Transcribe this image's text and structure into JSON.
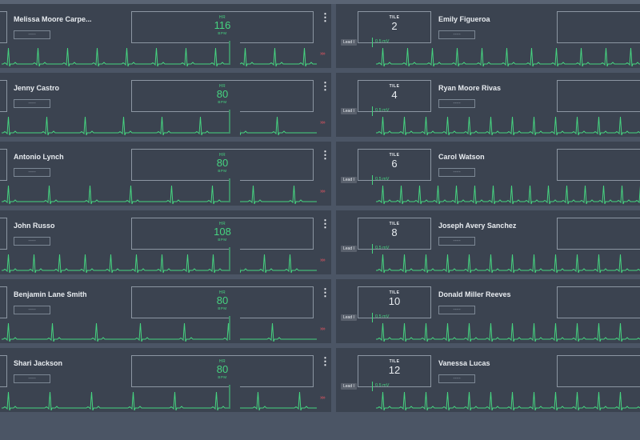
{
  "colors": {
    "background": "#4b5565",
    "tile": "#3b4350",
    "waveform": "#46d480",
    "alarm_arrows": "#e05561"
  },
  "left_tiles": [
    {
      "name": "Melissa Moore Carpe...",
      "field": "----",
      "hr_label": "HR",
      "hr_value": "116",
      "hr_unit": "BPM",
      "menu": "⋮",
      "arrows": "»»"
    },
    {
      "name": "Jenny Castro",
      "field": "----",
      "hr_label": "HR",
      "hr_value": "80",
      "hr_unit": "BPM",
      "menu": "⋮",
      "arrows": "»»"
    },
    {
      "name": "Antonio Lynch",
      "field": "----",
      "hr_label": "HR",
      "hr_value": "80",
      "hr_unit": "BPM",
      "menu": "⋮",
      "arrows": "»»"
    },
    {
      "name": "John Russo",
      "field": "----",
      "hr_label": "HR",
      "hr_value": "108",
      "hr_unit": "BPM",
      "menu": "⋮",
      "arrows": "»»"
    },
    {
      "name": "Benjamin Lane Smith",
      "field": "----",
      "hr_label": "HR",
      "hr_value": "80",
      "hr_unit": "BPM",
      "menu": "⋮",
      "arrows": "»»"
    },
    {
      "name": "Shari Jackson",
      "field": "----",
      "hr_label": "HR",
      "hr_value": "80",
      "hr_unit": "BPM",
      "menu": "⋮",
      "arrows": "»»"
    }
  ],
  "right_tiles": [
    {
      "tile_label": "TILE",
      "tile_number": "2",
      "name": "Emily Figueroa",
      "field": "----",
      "lead": "Lead I",
      "scale": "0.5 mV"
    },
    {
      "tile_label": "TILE",
      "tile_number": "4",
      "name": "Ryan Moore Rivas",
      "field": "----",
      "lead": "Lead I",
      "scale": "0.5 mV"
    },
    {
      "tile_label": "TILE",
      "tile_number": "6",
      "name": "Carol Watson",
      "field": "----",
      "lead": "Lead I",
      "scale": "0.5 mV"
    },
    {
      "tile_label": "TILE",
      "tile_number": "8",
      "name": "Joseph Avery Sanchez",
      "field": "----",
      "lead": "Lead I",
      "scale": "0.5 mV"
    },
    {
      "tile_label": "TILE",
      "tile_number": "10",
      "name": "Donald Miller Reeves",
      "field": "----",
      "lead": "Lead I",
      "scale": "0.5 mV"
    },
    {
      "tile_label": "TILE",
      "tile_number": "12",
      "name": "Vanessa Lucas",
      "field": "----",
      "lead": "Lead I",
      "scale": "0.5 mV"
    }
  ]
}
